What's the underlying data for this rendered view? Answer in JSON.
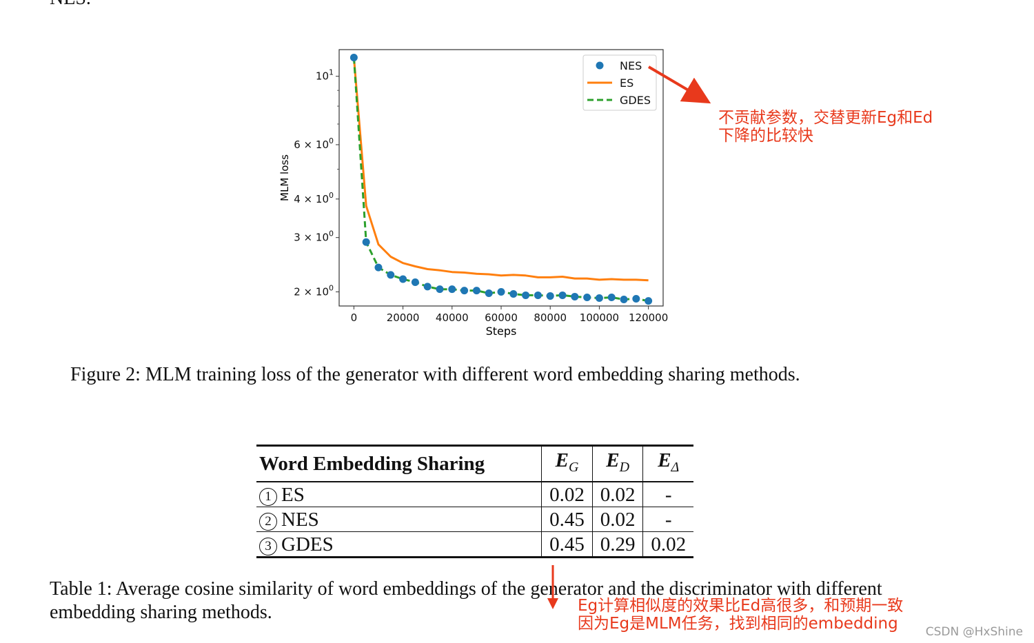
{
  "top_text": "NES.",
  "chart_data": {
    "type": "line",
    "xlabel": "Steps",
    "ylabel": "MLM loss",
    "yscale": "log",
    "xlim": [
      -6000,
      126000
    ],
    "ylim": [
      1.8,
      12.2
    ],
    "x_ticks": [
      0,
      20000,
      40000,
      60000,
      80000,
      100000,
      120000
    ],
    "x_tick_labels": [
      "0",
      "20000",
      "40000",
      "60000",
      "80000",
      "100000",
      "120000"
    ],
    "y_ticks": [
      2,
      3,
      4,
      6,
      10
    ],
    "y_tick_labels": [
      {
        "base": "2 × 10",
        "exp": "0"
      },
      {
        "base": "3 × 10",
        "exp": "0"
      },
      {
        "base": "4 × 10",
        "exp": "0"
      },
      {
        "base": "6 × 10",
        "exp": "0"
      },
      {
        "base": "10",
        "exp": "1"
      }
    ],
    "legend_position": "top-right",
    "series": [
      {
        "name": "NES",
        "style": "markers",
        "color": "#1f77b4",
        "x": [
          0,
          5000,
          10000,
          15000,
          20000,
          25000,
          30000,
          35000,
          40000,
          45000,
          50000,
          55000,
          60000,
          65000,
          70000,
          75000,
          80000,
          85000,
          90000,
          95000,
          100000,
          105000,
          110000,
          115000,
          120000
        ],
        "y": [
          11.5,
          2.9,
          2.4,
          2.27,
          2.2,
          2.15,
          2.08,
          2.04,
          2.04,
          2.02,
          2.02,
          1.98,
          2.0,
          1.97,
          1.95,
          1.95,
          1.94,
          1.95,
          1.93,
          1.92,
          1.91,
          1.92,
          1.89,
          1.9,
          1.87
        ]
      },
      {
        "name": "ES",
        "style": "solid",
        "color": "#ff7f0e",
        "x": [
          0,
          5000,
          10000,
          15000,
          20000,
          25000,
          30000,
          35000,
          40000,
          45000,
          50000,
          55000,
          60000,
          65000,
          70000,
          75000,
          80000,
          85000,
          90000,
          95000,
          100000,
          105000,
          110000,
          115000,
          120000
        ],
        "y": [
          11.5,
          3.8,
          2.85,
          2.6,
          2.48,
          2.42,
          2.37,
          2.35,
          2.32,
          2.31,
          2.29,
          2.28,
          2.26,
          2.27,
          2.26,
          2.23,
          2.23,
          2.24,
          2.21,
          2.21,
          2.19,
          2.2,
          2.19,
          2.19,
          2.18
        ]
      },
      {
        "name": "GDES",
        "style": "dashed",
        "color": "#2ca02c",
        "x": [
          0,
          5000,
          10000,
          15000,
          20000,
          25000,
          30000,
          35000,
          40000,
          45000,
          50000,
          55000,
          60000,
          65000,
          70000,
          75000,
          80000,
          85000,
          90000,
          95000,
          100000,
          105000,
          110000,
          115000,
          120000
        ],
        "y": [
          11.5,
          2.9,
          2.4,
          2.27,
          2.2,
          2.15,
          2.08,
          2.04,
          2.04,
          2.02,
          2.02,
          1.98,
          2.0,
          1.97,
          1.95,
          1.95,
          1.94,
          1.95,
          1.93,
          1.92,
          1.91,
          1.92,
          1.89,
          1.9,
          1.87
        ]
      }
    ]
  },
  "figure_caption": "Figure 2: MLM training loss of the generator with different word embedding sharing methods.",
  "table": {
    "headers": {
      "name": "Word Embedding Sharing",
      "eg": {
        "base": "E",
        "sub": "G"
      },
      "ed": {
        "base": "E",
        "sub": "D"
      },
      "edelta": {
        "base": "E",
        "sub": "Δ"
      }
    },
    "rows": [
      {
        "num": "1",
        "name": "ES",
        "eg": "0.02",
        "ed": "0.02",
        "edelta": "-"
      },
      {
        "num": "2",
        "name": "NES",
        "eg": "0.45",
        "ed": "0.02",
        "edelta": "-"
      },
      {
        "num": "3",
        "name": "GDES",
        "eg": "0.45",
        "ed": "0.29",
        "edelta": "0.02"
      }
    ]
  },
  "table_caption": "Table 1: Average cosine similarity of word embeddings of the generator and the discriminator with different embedding sharing methods.",
  "annotations": {
    "legend_note": [
      "不贡献参数，交替更新Eg和Ed",
      "下降的比较快"
    ],
    "table_note": [
      "Eg计算相似度的效果比Ed高很多，和预期一致",
      "因为Eg是MLM任务，找到相同的embedding"
    ],
    "color": "#e8391c"
  },
  "watermark": "CSDN @HxShine"
}
